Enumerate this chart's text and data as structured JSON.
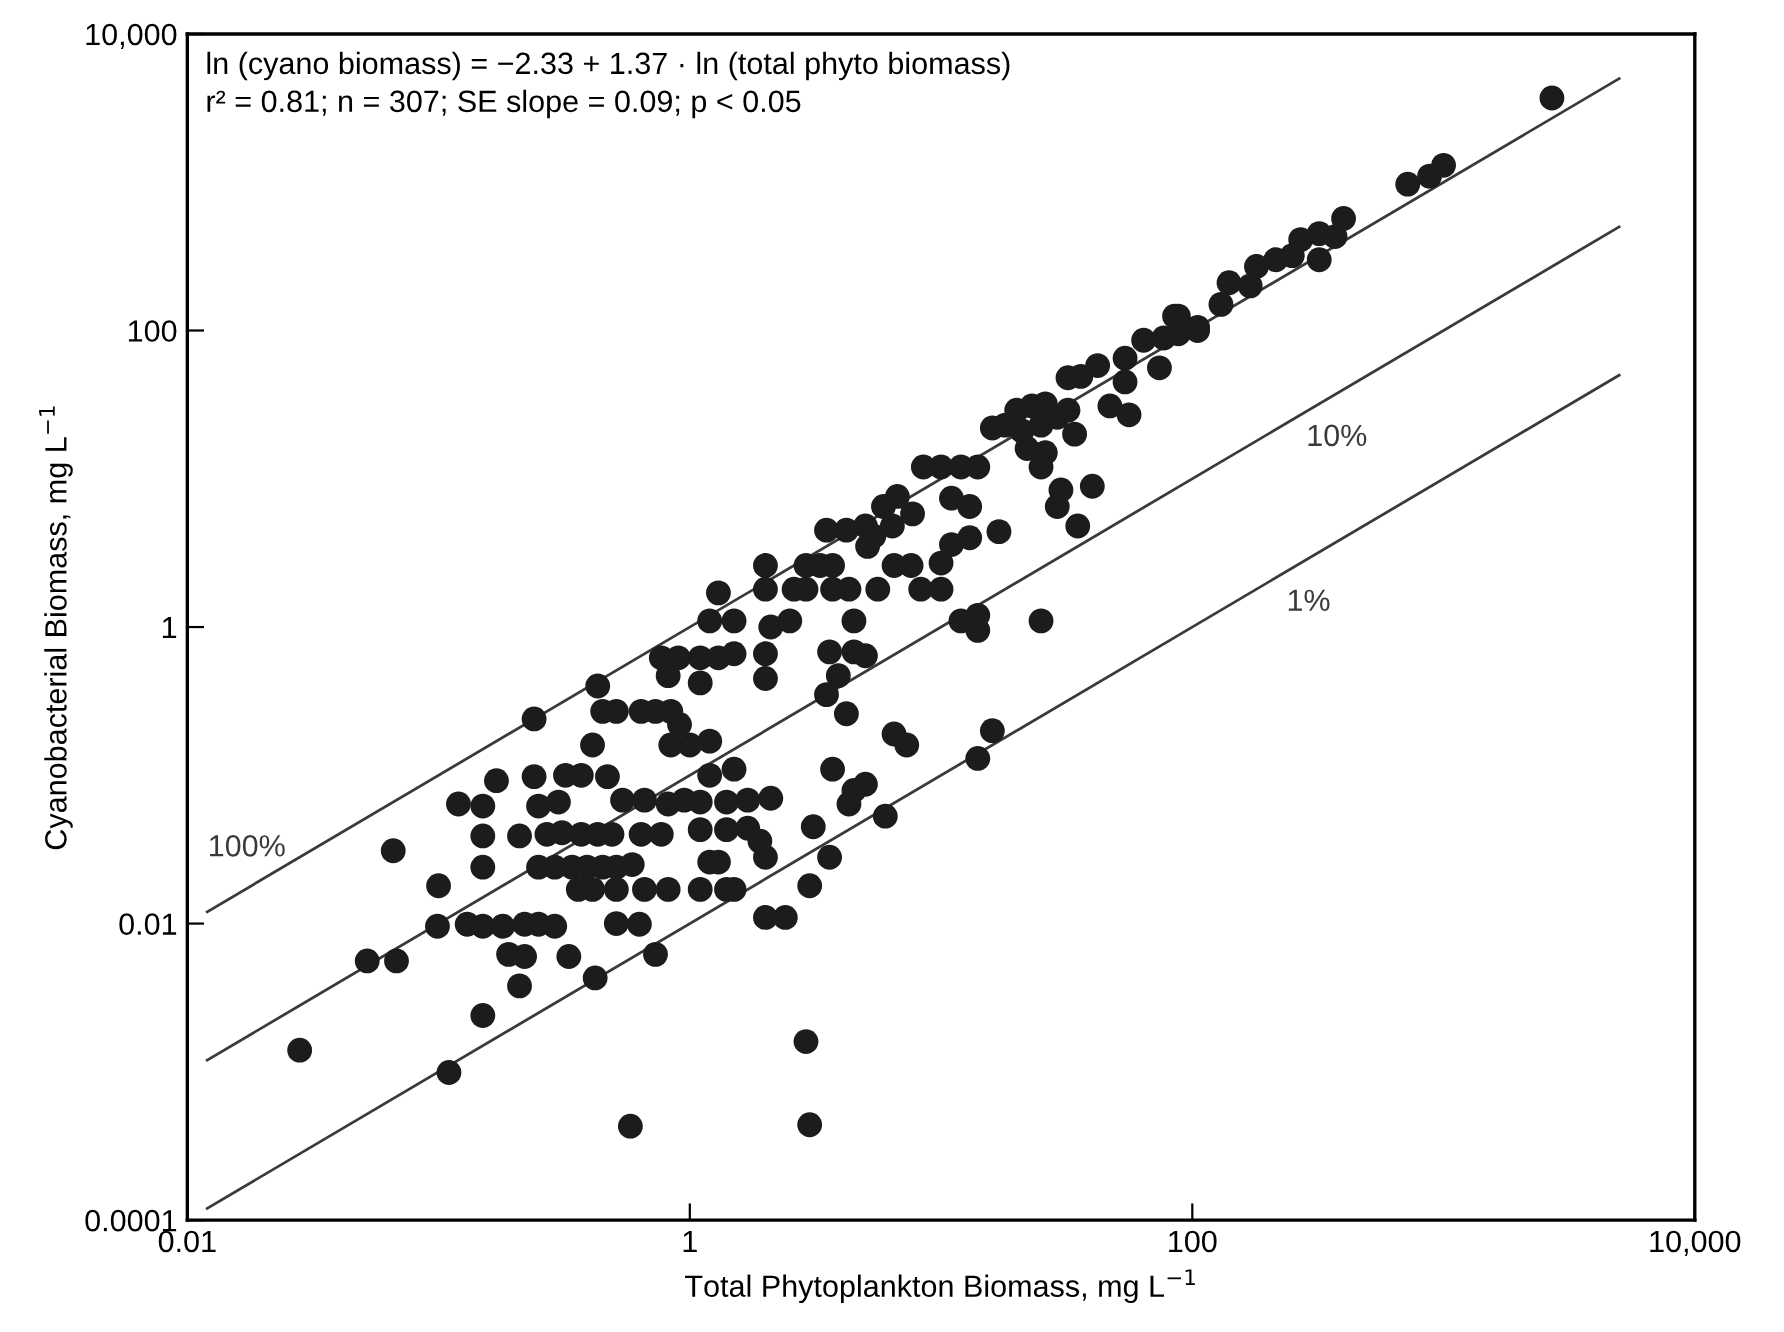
{
  "chart_data": {
    "type": "scatter",
    "xlabel": "Total Phytoplankton Biomass, mg L$^{−1}$",
    "ylabel": "Cyanobacterial Biomass, mg L$^{−1}$",
    "log": "xy",
    "grid": false,
    "xlim": [
      0.01,
      10000
    ],
    "ylim": [
      0.0001,
      10000
    ],
    "xticks": [
      {
        "value": 0.01,
        "label": "0.01"
      },
      1,
      100,
      {
        "value": 10000,
        "label": "10,000"
      }
    ],
    "yticks": [
      {
        "value": 0.0001,
        "label": "0.0001"
      },
      {
        "value": 0.01,
        "label": "0.01"
      },
      1,
      100,
      {
        "value": 10000,
        "label": "10,000"
      }
    ],
    "annotations": [
      "ln (cyano biomass) = −2.33 + 1.37 · ln (total phyto biomass)",
      "r² = 0.81; n = 307; SE slope = 0.09; p < 0.05"
    ],
    "series": [
      {
        "type": "line",
        "name": "100%",
        "color": "#3a3a3a",
        "line_style": "solid",
        "marker": "none",
        "x": [
          0.012,
          5000
        ],
        "values": [
          0.012,
          5000
        ]
      },
      {
        "type": "line",
        "name": "10%",
        "color": "#3a3a3a",
        "line_style": "solid",
        "marker": "none",
        "x": [
          0.012,
          5000
        ],
        "values": [
          0.0012,
          500
        ]
      },
      {
        "type": "line",
        "name": "1%",
        "color": "#3a3a3a",
        "line_style": "solid",
        "marker": "none",
        "x": [
          0.012,
          5000
        ],
        "values": [
          0.00012,
          50
        ]
      },
      {
        "color": "#1c1c1c",
        "marker": "circle",
        "x": [
          0.028,
          0.066,
          0.052,
          0.068,
          0.1,
          0.099,
          0.11,
          0.12,
          0.13,
          0.15,
          0.15,
          0.15,
          0.15,
          0.15,
          0.17,
          0.18,
          0.19,
          0.21,
          0.21,
          0.22,
          0.22,
          0.24,
          0.24,
          0.25,
          0.25,
          0.25,
          0.27,
          0.29,
          0.29,
          0.3,
          0.31,
          0.32,
          0.33,
          0.34,
          0.36,
          0.37,
          0.37,
          0.39,
          0.41,
          0.41,
          0.42,
          0.43,
          0.43,
          0.45,
          0.45,
          0.47,
          0.49,
          0.51,
          0.51,
          0.51,
          0.51,
          0.54,
          0.58,
          0.59,
          0.63,
          0.64,
          0.64,
          0.66,
          0.66,
          0.73,
          0.73,
          0.77,
          0.77,
          0.82,
          0.82,
          0.82,
          0.84,
          0.84,
          0.9,
          1.1,
          1.3,
          1.5,
          1.1,
          2.0,
          2.0,
          3.6,
          4.5,
          5.0,
          3.9,
          3.5,
          4.2,
          0.91,
          1.0,
          1.2,
          6.5,
          7.3,
          16,
          14,
          1.2,
          1.5,
          3.7,
          5.0,
          4.5,
          4.3,
          6.0,
          0.95,
          1.1,
          1.4,
          1.7,
          2.1,
          1.1,
          1.4,
          1.7,
          1.9,
          2.0,
          3.1,
          1.2,
          1.3,
          3.6,
          1.1,
          1.4,
          1.5,
          3.0,
          2.0,
          2.4,
          2.9,
          3.0,
          1.2,
          1.5,
          2.1,
          2.5,
          4.5,
          12,
          14,
          14,
          1.3,
          2.0,
          2.6,
          2.9,
          3.7,
          4.3,
          5.6,
          8.3,
          10,
          2.0,
          2.9,
          3.3,
          3.7,
          6.5,
          7.6,
          10,
          3.5,
          4.2,
          5.0,
          5.4,
          6.4,
          5.1,
          17,
          11,
          13,
          6.7,
          5.9,
          7.7,
          11,
          13,
          8.5,
          10,
          12,
          14,
          25,
          30,
          29,
          40,
          35,
          22,
          26,
          25,
          16,
          18,
          20,
          23,
          26,
          29,
          32,
          21,
          25,
          34,
          47,
          56,
          42,
          36,
          32,
          54,
          54,
          64,
          77,
          74,
          85,
          88,
          88,
          105,
          105,
          130,
          140,
          170,
          180,
          215,
          250,
          320,
          270,
          320,
          370,
          400,
          720,
          880,
          1000,
          2700
        ],
        "values": [
          0.0014,
          0.031,
          0.0056,
          0.0056,
          0.018,
          0.0096,
          0.00099,
          0.064,
          0.0099,
          0.0024,
          0.062,
          0.039,
          0.024,
          0.0096,
          0.092,
          0.0096,
          0.0062,
          0.039,
          0.0038,
          0.0099,
          0.006,
          0.24,
          0.098,
          0.062,
          0.024,
          0.0099,
          0.04,
          0.024,
          0.0096,
          0.066,
          0.041,
          0.1,
          0.006,
          0.024,
          0.017,
          0.1,
          0.04,
          0.024,
          0.16,
          0.017,
          0.0043,
          0.4,
          0.04,
          0.27,
          0.024,
          0.098,
          0.04,
          0.27,
          0.024,
          0.017,
          0.01,
          0.068,
          0.00043,
          0.025,
          0.0099,
          0.27,
          0.04,
          0.068,
          0.017,
          0.27,
          0.0062,
          0.62,
          0.04,
          0.47,
          0.064,
          0.017,
          0.27,
          0.16,
          0.62,
          0.62,
          0.62,
          0.66,
          0.42,
          0.66,
          0.45,
          0.68,
          0.68,
          0.64,
          0.47,
          0.35,
          0.26,
          0.22,
          0.16,
          0.17,
          0.19,
          0.16,
          0.2,
          0.13,
          0.1,
          0.11,
          0.11,
          0.087,
          0.079,
          0.064,
          0.053,
          0.068,
          0.066,
          0.066,
          0.068,
          0.07,
          0.043,
          0.043,
          0.044,
          0.036,
          0.028,
          0.045,
          0.026,
          0.026,
          0.028,
          0.017,
          0.017,
          0.017,
          0.018,
          0.011,
          0.011,
          0.0016,
          0.00044,
          1.1,
          1.1,
          1.0,
          1.1,
          1.1,
          1.1,
          1.2,
          0.95,
          1.7,
          1.8,
          1.8,
          1.8,
          1.8,
          1.8,
          1.8,
          1.8,
          1.8,
          2.6,
          2.6,
          2.6,
          2.6,
          2.6,
          2.6,
          2.7,
          4.5,
          4.5,
          4.8,
          4.1,
          4.8,
          3.5,
          4.4,
          3.6,
          4.0,
          7.6,
          6.5,
          5.8,
          7.4,
          6.5,
          12,
          12,
          12,
          12,
          1.1,
          8.4,
          6.5,
          8.9,
          4.8,
          16,
          15,
          12,
          22,
          23,
          29,
          31,
          32,
          26,
          29,
          21,
          23,
          20,
          31,
          27,
          58,
          49,
          48,
          65,
          45,
          86,
          89,
          56,
          125,
          125,
          95,
          105,
          100,
          150,
          210,
          200,
          270,
          300,
          320,
          300,
          410,
          450,
          430,
          570,
          970,
          1100,
          1300,
          3700
        ]
      }
    ]
  }
}
